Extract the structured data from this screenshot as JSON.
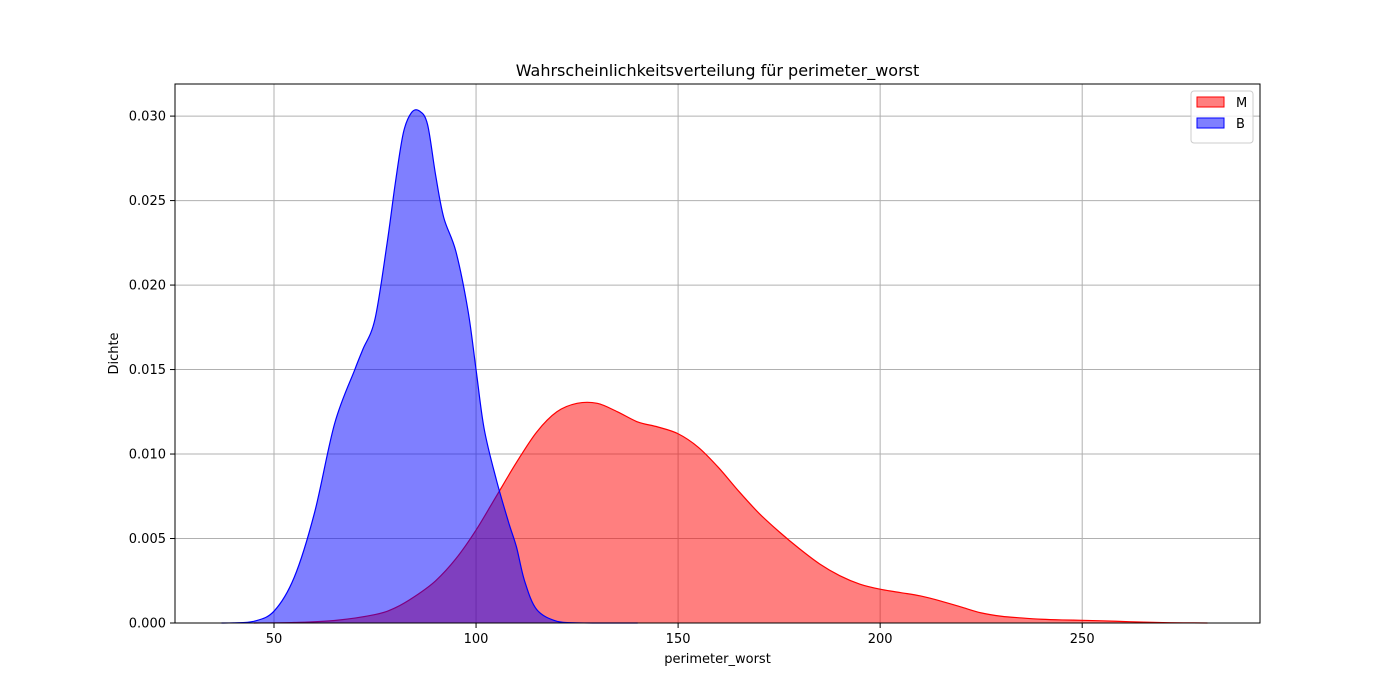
{
  "chart_data": {
    "type": "area",
    "title": "Wahrscheinlichkeitsverteilung für perimeter_worst",
    "xlabel": "perimeter_worst",
    "ylabel": "Dichte",
    "xlim": [
      25.5,
      294
    ],
    "ylim": [
      0,
      0.0319
    ],
    "xticks": [
      50,
      100,
      150,
      200,
      250
    ],
    "yticks": [
      0.0,
      0.005,
      0.01,
      0.015,
      0.02,
      0.025,
      0.03
    ],
    "xtick_labels": [
      "50",
      "100",
      "150",
      "200",
      "250"
    ],
    "ytick_labels": [
      "0.000",
      "0.005",
      "0.010",
      "0.015",
      "0.020",
      "0.025",
      "0.030"
    ],
    "grid": true,
    "legend_position": "top-right",
    "series": [
      {
        "name": "M",
        "color": "#ff0000",
        "fill": "#ff0000",
        "fill_opacity": 0.5,
        "x": [
          45,
          55,
          65,
          75,
          80,
          85,
          90,
          95,
          100,
          105,
          110,
          115,
          120,
          125,
          130,
          135,
          140,
          145,
          150,
          155,
          160,
          165,
          170,
          175,
          180,
          185,
          190,
          195,
          200,
          205,
          210,
          215,
          220,
          225,
          230,
          235,
          240,
          245,
          250,
          255,
          260,
          265,
          270,
          275,
          281
        ],
        "y": [
          0.0,
          3e-05,
          0.00015,
          0.0005,
          0.0009,
          0.0016,
          0.0025,
          0.0038,
          0.0055,
          0.0075,
          0.0095,
          0.0113,
          0.0125,
          0.013,
          0.013,
          0.0125,
          0.0119,
          0.0116,
          0.0112,
          0.0104,
          0.0092,
          0.0078,
          0.0065,
          0.0054,
          0.0044,
          0.0035,
          0.0028,
          0.0023,
          0.002,
          0.0018,
          0.0016,
          0.0013,
          0.00095,
          0.0006,
          0.0004,
          0.0003,
          0.00022,
          0.00018,
          0.00016,
          0.00013,
          9e-05,
          5e-05,
          2e-05,
          1e-05,
          0.0
        ]
      },
      {
        "name": "B",
        "color": "#0000ff",
        "fill": "#0000ff",
        "fill_opacity": 0.5,
        "x": [
          37,
          40,
          45,
          50,
          55,
          60,
          65,
          70,
          72,
          75,
          78,
          80,
          82,
          84,
          86,
          88,
          90,
          92,
          95,
          98,
          100,
          102,
          105,
          108,
          110,
          112,
          115,
          120,
          125,
          130,
          135,
          140
        ],
        "y": [
          0.0,
          1e-05,
          0.0001,
          0.0007,
          0.0027,
          0.0065,
          0.0118,
          0.015,
          0.0162,
          0.018,
          0.0225,
          0.026,
          0.029,
          0.0302,
          0.0303,
          0.0295,
          0.0265,
          0.024,
          0.022,
          0.0185,
          0.015,
          0.0115,
          0.0085,
          0.006,
          0.0045,
          0.0025,
          0.0008,
          0.0001,
          1e-05,
          0.0,
          0.0,
          0.0
        ]
      }
    ]
  }
}
